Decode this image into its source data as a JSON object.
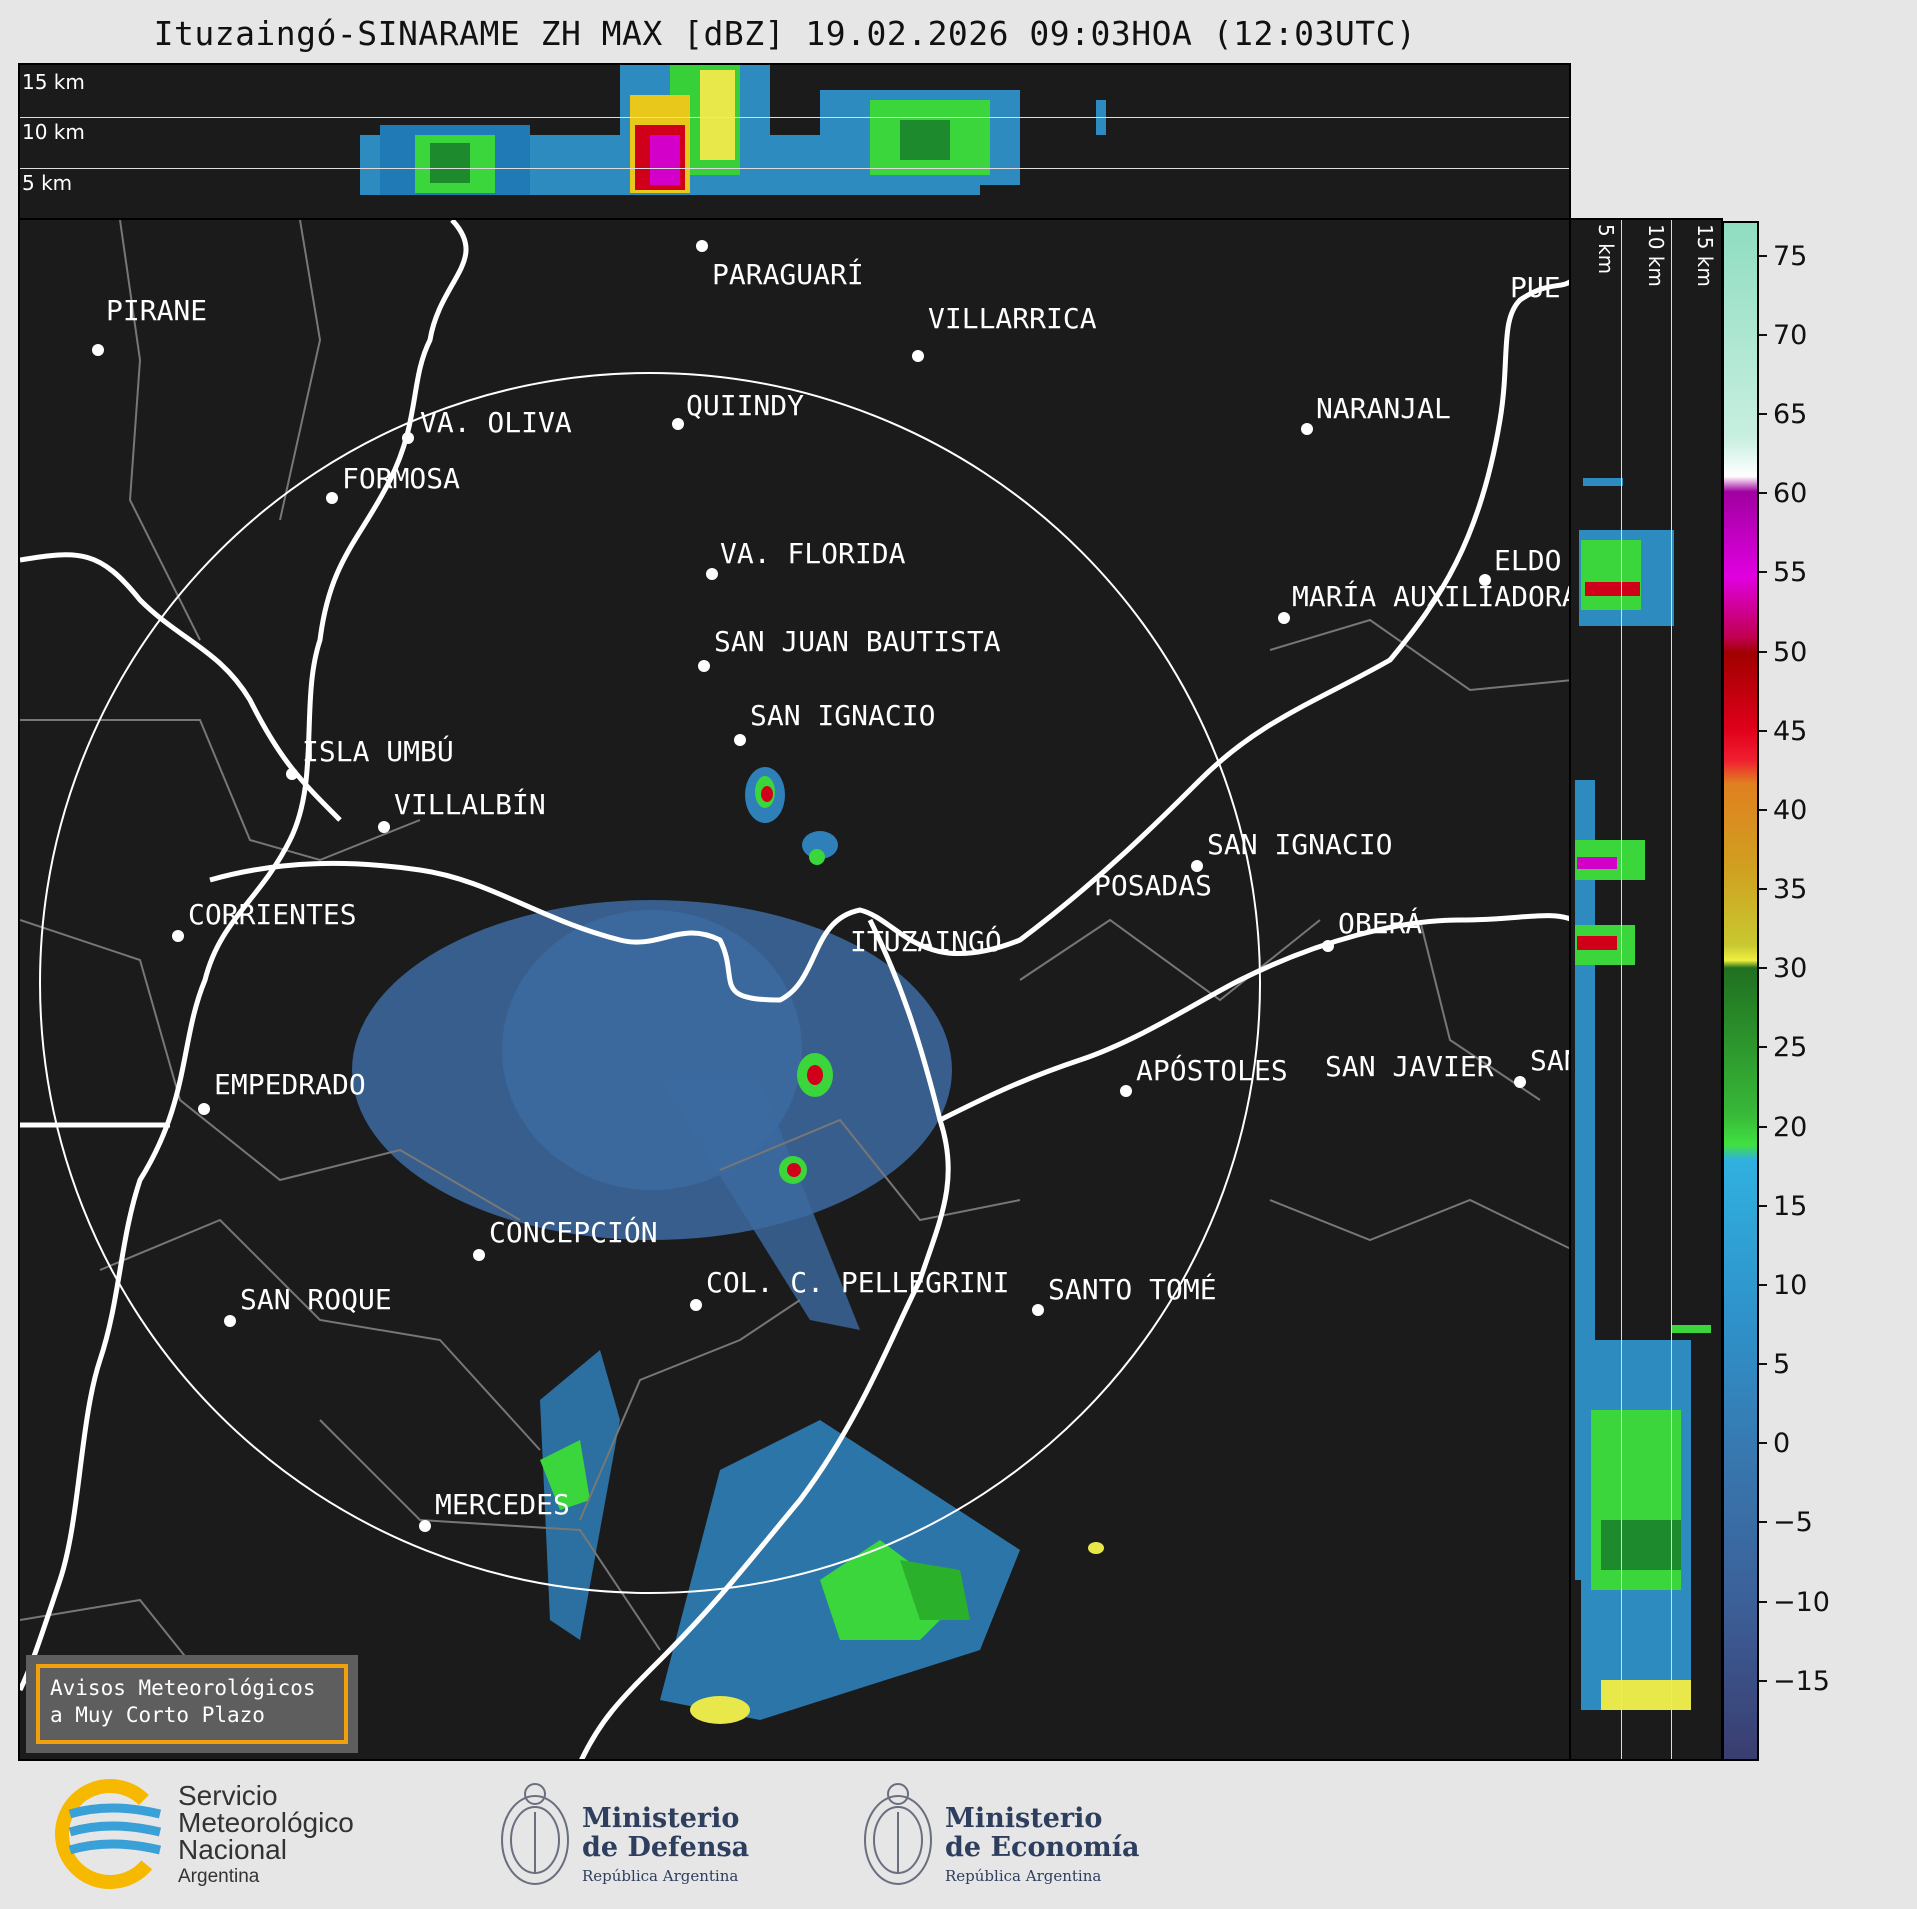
{
  "title": "Ituzaingó-SINARAME ZH MAX [dBZ] 19.02.2026 09:03HOA (12:03UTC)",
  "top_panel": {
    "altitude_labels": [
      "15 km",
      "10 km",
      "5 km"
    ]
  },
  "side_panel": {
    "altitude_labels": [
      "5 km",
      "10 km",
      "15 km"
    ]
  },
  "map": {
    "radar_site": "ITUZAINGÓ",
    "cities": [
      {
        "name": "PARAGUARÍ"
      },
      {
        "name": "VILLARRICA"
      },
      {
        "name": "PIRANE"
      },
      {
        "name": "QUIINDY"
      },
      {
        "name": "VA. OLIVA"
      },
      {
        "name": "NARANJAL"
      },
      {
        "name": "FORMOSA"
      },
      {
        "name": "VA. FLORIDA"
      },
      {
        "name": "MARÍA AUXILIADORA"
      },
      {
        "name": "SAN JUAN BAUTISTA"
      },
      {
        "name": "SAN IGNACIO"
      },
      {
        "name": "ISLA UMBÚ"
      },
      {
        "name": "VILLALBÍN"
      },
      {
        "name": "SAN IGNACIO"
      },
      {
        "name": "POSADAS"
      },
      {
        "name": "CORRIENTES"
      },
      {
        "name": "ITUZAINGÓ"
      },
      {
        "name": "OBERÁ"
      },
      {
        "name": "EMPEDRADO"
      },
      {
        "name": "APÓSTOLES"
      },
      {
        "name": "SAN JAVIER"
      },
      {
        "name": "SAN"
      },
      {
        "name": "CONCEPCIÓN"
      },
      {
        "name": "COL. C. PELLEGRINI"
      },
      {
        "name": "SANTO TOMÉ"
      },
      {
        "name": "SAN ROQUE"
      },
      {
        "name": "MERCEDES"
      },
      {
        "name": "PUE"
      },
      {
        "name": "ELDO"
      }
    ]
  },
  "warning_box": {
    "line1": "Avisos Meteorológicos",
    "line2": "a Muy Corto Plazo"
  },
  "colorbar": {
    "unit": "dBZ",
    "min": -20,
    "max": 77,
    "ticks": [
      "75",
      "70",
      "65",
      "60",
      "55",
      "50",
      "45",
      "40",
      "35",
      "30",
      "25",
      "20",
      "15",
      "10",
      "5",
      "0",
      "−5",
      "−10",
      "−15"
    ]
  },
  "footer": {
    "smn": {
      "line1": "Servicio",
      "line2": "Meteorológico",
      "line3": "Nacional",
      "line4": "Argentina"
    },
    "defensa": {
      "line1": "Ministerio",
      "line2": "de Defensa",
      "line3": "República Argentina"
    },
    "economia": {
      "line1": "Ministerio",
      "line2": "de Economía",
      "line3": "República Argentina"
    }
  },
  "colors": {
    "background": "#1b1b1b",
    "accent_orange": "#f1a10e",
    "smn_blue": "#3aa0d8",
    "smn_yellow": "#f7b800"
  }
}
